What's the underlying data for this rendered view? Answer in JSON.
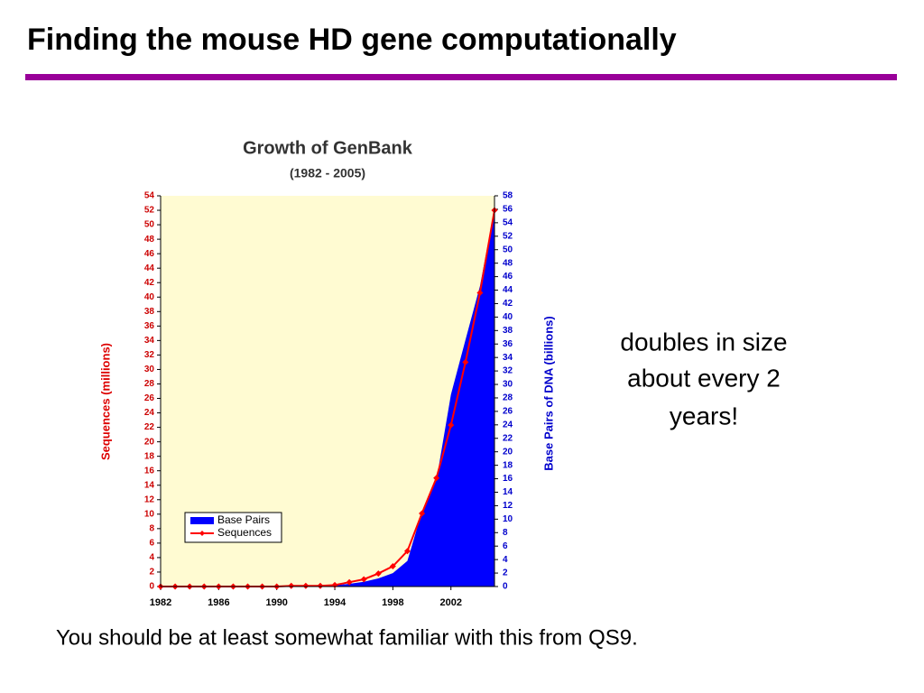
{
  "slide": {
    "title": "Finding the mouse HD gene computationally",
    "callout": [
      "doubles in size",
      "about every 2",
      "years!"
    ],
    "footer": "You should be at least somewhat familiar with this from QS9."
  },
  "chart_data": {
    "type": "combo",
    "title": "Growth of GenBank",
    "subtitle": "(1982 - 2005)",
    "y_label": "Sequences (millions)",
    "y2_label": "Base Pairs of DNA (billions)",
    "x": [
      1982,
      1983,
      1984,
      1985,
      1986,
      1987,
      1988,
      1989,
      1990,
      1991,
      1992,
      1993,
      1994,
      1995,
      1996,
      1997,
      1998,
      1999,
      2000,
      2001,
      2002,
      2003,
      2004,
      2005
    ],
    "series": [
      {
        "name": "Base Pairs",
        "type": "area",
        "axis": "y2",
        "color": "#0000ff",
        "values": [
          0,
          0,
          0,
          0,
          0,
          0,
          0,
          0,
          0,
          0.1,
          0.1,
          0.2,
          0.2,
          0.4,
          0.7,
          1.2,
          2,
          3.8,
          11.1,
          15.8,
          28.5,
          36.6,
          44.6,
          56
        ]
      },
      {
        "name": "Sequences",
        "type": "line",
        "axis": "y",
        "color": "#ff0000",
        "values": [
          0,
          0,
          0,
          0,
          0,
          0,
          0,
          0,
          0,
          0.1,
          0.1,
          0.1,
          0.2,
          0.6,
          1,
          1.8,
          2.8,
          4.9,
          10.1,
          15,
          22.3,
          31,
          40.6,
          52
        ]
      }
    ],
    "xlim": [
      1982,
      2005
    ],
    "xticks": [
      1982,
      1986,
      1990,
      1994,
      1998,
      2002
    ],
    "ylim": [
      0,
      54
    ],
    "yticks": [
      0,
      2,
      4,
      6,
      8,
      10,
      12,
      14,
      16,
      18,
      20,
      22,
      24,
      26,
      28,
      30,
      32,
      34,
      36,
      38,
      40,
      42,
      44,
      46,
      48,
      50,
      52,
      54
    ],
    "y2lim": [
      0,
      58
    ],
    "y2ticks": [
      0,
      2,
      4,
      6,
      8,
      10,
      12,
      14,
      16,
      18,
      20,
      22,
      24,
      26,
      28,
      30,
      32,
      34,
      36,
      38,
      40,
      42,
      44,
      46,
      48,
      50,
      52,
      54,
      56,
      58
    ],
    "legend": "lower-left",
    "background": "#fffbd2"
  }
}
